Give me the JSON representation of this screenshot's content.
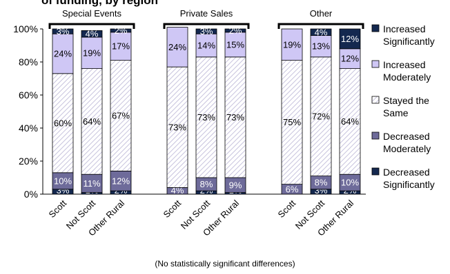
{
  "title_fragment": "of funding, by region",
  "footnote": "(No statistically significant differences)",
  "chart_data": {
    "type": "bar",
    "stacked": true,
    "percent": true,
    "ylim": [
      0,
      100
    ],
    "yticks": [
      "0%",
      "20%",
      "40%",
      "60%",
      "80%",
      "100%"
    ],
    "legend_position": "right",
    "groups": [
      {
        "label": "Special Events",
        "categories": [
          "Scott",
          "Not Scott",
          "Other Rural"
        ]
      },
      {
        "label": "Private Sales",
        "categories": [
          "Scott",
          "Not Scott",
          "Other Rural"
        ]
      },
      {
        "label": "Other",
        "categories": [
          "Scott",
          "Not Scott",
          "Other Rural"
        ]
      }
    ],
    "series": [
      {
        "name": "Decreased Significantly",
        "color": "#14284f",
        "pattern": "solid",
        "values": [
          3,
          1,
          2,
          0,
          2,
          1,
          0,
          3,
          2
        ],
        "labels": [
          "3%",
          "1%",
          "2%",
          "",
          "2%",
          "1%",
          "",
          "3%",
          "2%"
        ]
      },
      {
        "name": "Decreased Moderately",
        "color": "#6e6b9a",
        "pattern": "solid",
        "values": [
          10,
          11,
          12,
          4,
          8,
          9,
          6,
          8,
          10
        ],
        "labels": [
          "10%",
          "11%",
          "12%",
          "4%",
          "8%",
          "9%",
          "6%",
          "8%",
          "10%"
        ]
      },
      {
        "name": "Stayed the Same",
        "color": "#ffffff",
        "pattern": "hatch",
        "values": [
          60,
          64,
          67,
          73,
          73,
          73,
          75,
          72,
          64
        ],
        "labels": [
          "60%",
          "64%",
          "67%",
          "73%",
          "73%",
          "73%",
          "75%",
          "72%",
          "64%"
        ]
      },
      {
        "name": "Increased Moderately",
        "color": "#cfc7f5",
        "pattern": "solid",
        "values": [
          24,
          19,
          17,
          24,
          14,
          15,
          19,
          13,
          12
        ],
        "labels": [
          "24%",
          "19%",
          "17%",
          "24%",
          "14%",
          "15%",
          "19%",
          "13%",
          "12%"
        ]
      },
      {
        "name": "Increased Significantly",
        "color": "#14284f",
        "pattern": "solid",
        "values": [
          3,
          4,
          2,
          0,
          3,
          2,
          0,
          4,
          12
        ],
        "labels": [
          "3%",
          "4%",
          "2%",
          "",
          "3%",
          "2%",
          "",
          "4%",
          "12%"
        ]
      }
    ],
    "legend": [
      {
        "line1": "Increased",
        "line2": "Significantly",
        "color": "#14284f",
        "pattern": "solid"
      },
      {
        "line1": "Increased",
        "line2": "Moderately",
        "color": "#cfc7f5",
        "pattern": "solid"
      },
      {
        "line1": "Stayed the",
        "line2": "Same",
        "color": "#ffffff",
        "pattern": "hatch"
      },
      {
        "line1": "Decreased",
        "line2": "Moderately",
        "color": "#6e6b9a",
        "pattern": "solid"
      },
      {
        "line1": "Decreased",
        "line2": "Significantly",
        "color": "#14284f",
        "pattern": "solid"
      }
    ]
  }
}
